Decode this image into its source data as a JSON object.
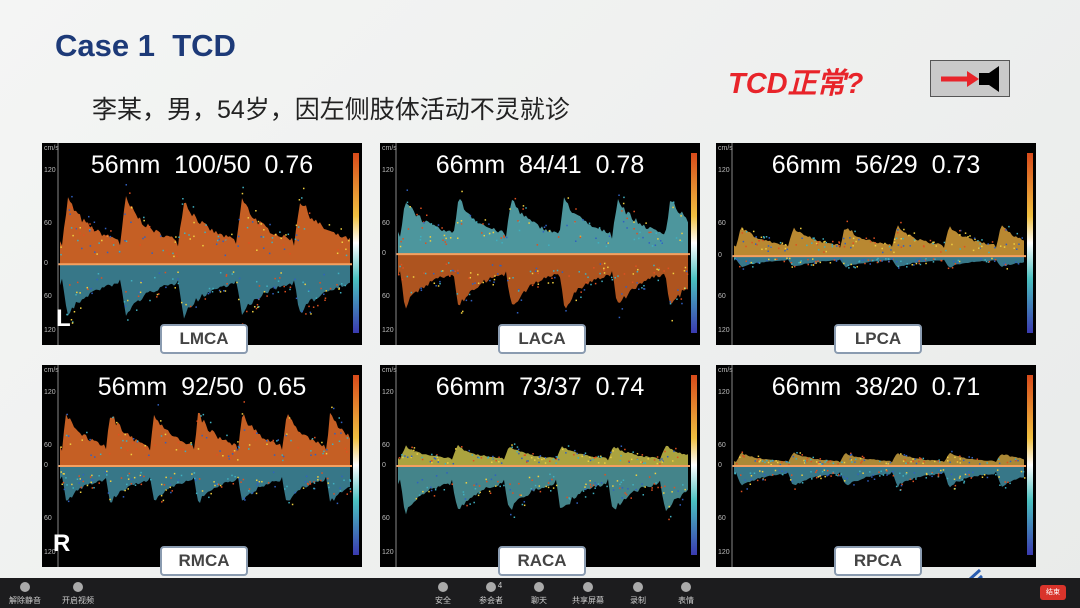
{
  "slide": {
    "title": "Case 1  TCD",
    "subtitle": "李某，男，54岁，因左侧肢体活动不灵就诊",
    "annotation": "TCD正常?",
    "axis_labels": [
      "cm/s",
      "120",
      "60",
      "0",
      "60",
      "120"
    ],
    "side_labels": [
      "L",
      "R"
    ],
    "panels": [
      {
        "header": "56mm  100/50  0.76",
        "vessel": "LMCA"
      },
      {
        "header": "66mm  84/41  0.78",
        "vessel": "LACA"
      },
      {
        "header": "66mm  56/29  0.73",
        "vessel": "LPCA"
      },
      {
        "header": "56mm  92/50  0.65",
        "vessel": "RMCA"
      },
      {
        "header": "66mm  73/37  0.74",
        "vessel": "RACA"
      },
      {
        "header": "66mm  38/20  0.71",
        "vessel": "RPCA"
      }
    ]
  },
  "toolbar": {
    "items": [
      "解除静音",
      "开启视频",
      "安全",
      "参会者",
      "聊天",
      "共享屏幕",
      "录制",
      "表情"
    ],
    "participant_count": "4",
    "end": "结束"
  }
}
